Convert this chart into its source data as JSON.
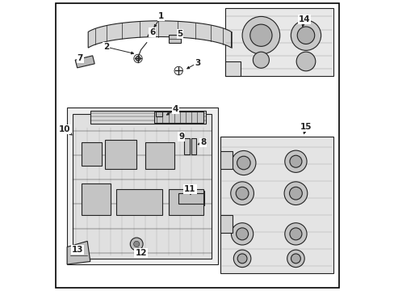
{
  "background_color": "#ffffff",
  "border_color": "#000000",
  "fig_width": 4.89,
  "fig_height": 3.6,
  "dpi": 100,
  "line_color": "#222222",
  "label_fontsize": 7.5,
  "line_width": 0.8,
  "label_positions": {
    "1": [
      0.375,
      0.945,
      0.345,
      0.9
    ],
    "2": [
      0.185,
      0.84,
      0.29,
      0.815
    ],
    "3": [
      0.5,
      0.785,
      0.455,
      0.76
    ],
    "4": [
      0.425,
      0.625,
      0.385,
      0.6
    ],
    "5": [
      0.44,
      0.885,
      0.425,
      0.868
    ],
    "6": [
      0.345,
      0.89,
      0.32,
      0.87
    ],
    "7": [
      0.095,
      0.8,
      0.115,
      0.79
    ],
    "8": [
      0.52,
      0.51,
      0.492,
      0.5
    ],
    "9": [
      0.445,
      0.53,
      0.452,
      0.52
    ],
    "10": [
      0.042,
      0.555,
      0.075,
      0.53
    ],
    "11": [
      0.475,
      0.35,
      0.477,
      0.32
    ],
    "12": [
      0.305,
      0.13,
      0.29,
      0.155
    ],
    "13": [
      0.085,
      0.14,
      0.095,
      0.13
    ],
    "14": [
      0.87,
      0.935,
      0.86,
      0.9
    ],
    "15": [
      0.875,
      0.565,
      0.865,
      0.53
    ]
  }
}
